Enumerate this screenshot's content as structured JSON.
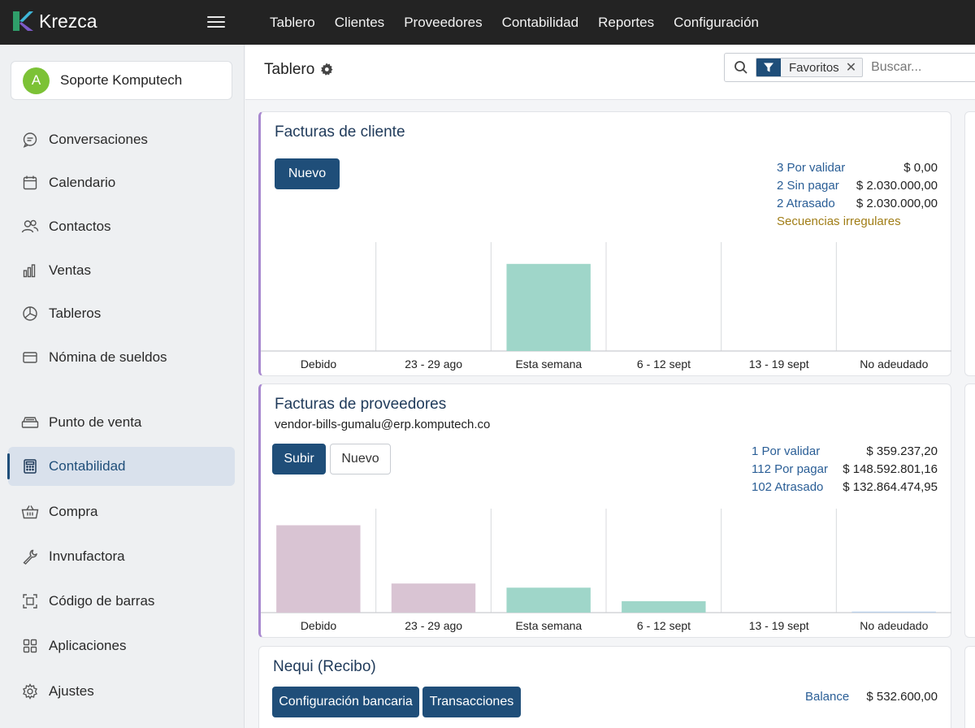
{
  "app": {
    "brand_name": "Krezca"
  },
  "topnav": [
    "Tablero",
    "Clientes",
    "Proveedores",
    "Contabilidad",
    "Reportes",
    "Configuración"
  ],
  "sidebar": {
    "company": {
      "initial": "A",
      "name": "Soporte Komputech"
    },
    "items": [
      {
        "label": "Conversaciones",
        "icon": "chat-icon"
      },
      {
        "label": "Calendario",
        "icon": "calendar-icon"
      },
      {
        "label": "Contactos",
        "icon": "contacts-icon"
      },
      {
        "label": "Ventas",
        "icon": "bar-chart-icon"
      },
      {
        "label": "Tableros",
        "icon": "dashboard-icon"
      },
      {
        "label": "Nómina de sueldos",
        "icon": "payroll-icon"
      },
      {
        "label": "Punto de venta",
        "icon": "pos-icon"
      },
      {
        "label": "Contabilidad",
        "icon": "calculator-icon",
        "active": true
      },
      {
        "label": "Compra",
        "icon": "basket-icon"
      },
      {
        "label": "Invnufactora",
        "icon": "wrench-icon"
      },
      {
        "label": "Código de barras",
        "icon": "barcode-icon"
      },
      {
        "label": "Aplicaciones",
        "icon": "apps-icon"
      },
      {
        "label": "Ajustes",
        "icon": "gear-icon"
      }
    ]
  },
  "header": {
    "title": "Tablero",
    "search": {
      "facet": "Favoritos",
      "placeholder": "Buscar..."
    }
  },
  "customer_invoices": {
    "title": "Facturas de cliente",
    "new_label": "Nuevo",
    "stats": [
      {
        "label": "3 Por validar",
        "value": "$ 0,00"
      },
      {
        "label": "2 Sin pagar",
        "value": "$ 2.030.000,00"
      },
      {
        "label": "2 Atrasado",
        "value": "$ 2.030.000,00"
      }
    ],
    "warning": "Secuencias irregulares"
  },
  "vendor_bills": {
    "title": "Facturas de proveedores",
    "email": "vendor-bills-gumalu@erp.komputech.co",
    "upload_label": "Subir",
    "new_label": "Nuevo",
    "stats": [
      {
        "label": "1 Por validar",
        "value": "$ 359.237,20"
      },
      {
        "label": "112 Por pagar",
        "value": "$ 148.592.801,16"
      },
      {
        "label": "102 Atrasado",
        "value": "$ 132.864.474,95"
      }
    ]
  },
  "nequi": {
    "title": "Nequi (Recibo)",
    "bank_config_label": "Configuración bancaria",
    "transactions_label": "Transacciones",
    "balance_label": "Balance",
    "balance_value": "$ 532.600,00"
  },
  "chart_data": [
    {
      "type": "bar",
      "categories": [
        "Debido",
        "23 - 29 ago",
        "Esta semana",
        "6 - 12 sept",
        "13 - 19 sept",
        "No adeudado"
      ],
      "values": [
        0,
        0,
        0.8,
        0,
        0,
        0
      ],
      "colors": [
        "#9fd6c9"
      ],
      "ylim": [
        0,
        1
      ],
      "grid": true
    },
    {
      "type": "bar",
      "categories": [
        "Debido",
        "23 - 29 ago",
        "Esta semana",
        "6 - 12 sept",
        "13 - 19 sept",
        "No adeudado"
      ],
      "values": [
        0.84,
        0.28,
        0.24,
        0.11,
        0,
        0.01
      ],
      "colors": [
        "#d9c4d3",
        "#d9c4d3",
        "#9fd6c9",
        "#9fd6c9",
        "#9fd6c9",
        "#b9d0ea"
      ],
      "ylim": [
        0,
        1
      ],
      "grid": true
    }
  ]
}
